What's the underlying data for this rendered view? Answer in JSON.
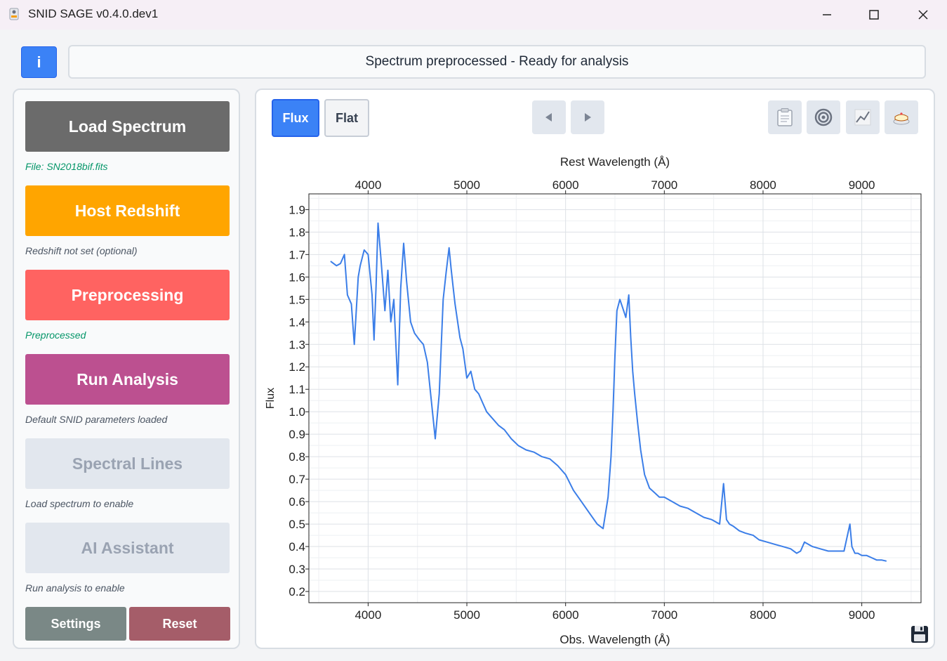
{
  "window": {
    "title": "SNID SAGE v0.4.0.dev1"
  },
  "header": {
    "info_label": "i",
    "status": "Spectrum preprocessed - Ready for analysis"
  },
  "sidebar": {
    "load": {
      "label": "Load Spectrum",
      "note": "File: SN2018bif.fits",
      "color": "#6b6b6b"
    },
    "host": {
      "label": "Host Redshift",
      "note": "Redshift not set (optional)",
      "color": "#ffa500"
    },
    "pre": {
      "label": "Preprocessing",
      "note": "Preprocessed",
      "color": "#ff6361"
    },
    "run": {
      "label": "Run Analysis",
      "note": "Default SNID parameters loaded",
      "color": "#bc5090"
    },
    "lines": {
      "label": "Spectral Lines",
      "note": "Load spectrum to enable",
      "disabled": true
    },
    "ai": {
      "label": "AI Assistant",
      "note": "Run analysis to enable",
      "disabled": true
    },
    "settings_label": "Settings",
    "reset_label": "Reset"
  },
  "toolbar": {
    "flux_label": "Flux",
    "flat_label": "Flat",
    "prev_icon": "triangle-left-icon",
    "next_icon": "triangle-right-icon",
    "tools": [
      "clipboard-icon",
      "target-icon",
      "line-chart-icon",
      "cake-icon"
    ],
    "active_view": "Flux"
  },
  "chart_data": {
    "type": "line",
    "title": "",
    "xlabel": "Obs. Wavelength (Å)",
    "x2label": "Rest Wavelength (Å)",
    "ylabel": "Flux",
    "xlim": [
      3400,
      9600
    ],
    "ylim": [
      0.15,
      1.97
    ],
    "xticks": [
      4000,
      5000,
      6000,
      7000,
      8000,
      9000
    ],
    "x2ticks": [
      4000,
      5000,
      6000,
      7000,
      8000,
      9000
    ],
    "yticks": [
      0.2,
      0.3,
      0.4,
      0.5,
      0.6,
      0.7,
      0.8,
      0.9,
      1.0,
      1.1,
      1.2,
      1.3,
      1.4,
      1.5,
      1.6,
      1.7,
      1.8,
      1.9
    ],
    "grid": true,
    "series": [
      {
        "color": "#3b7ee8",
        "x": [
          3620,
          3680,
          3720,
          3760,
          3790,
          3830,
          3860,
          3900,
          3920,
          3960,
          4000,
          4040,
          4060,
          4080,
          4100,
          4130,
          4170,
          4200,
          4230,
          4260,
          4300,
          4330,
          4360,
          4390,
          4430,
          4470,
          4520,
          4560,
          4600,
          4640,
          4680,
          4720,
          4760,
          4790,
          4820,
          4840,
          4860,
          4880,
          4900,
          4930,
          4960,
          5000,
          5040,
          5080,
          5120,
          5160,
          5200,
          5260,
          5320,
          5380,
          5450,
          5520,
          5600,
          5680,
          5760,
          5840,
          5920,
          6000,
          6080,
          6160,
          6240,
          6320,
          6380,
          6430,
          6460,
          6480,
          6500,
          6520,
          6550,
          6580,
          6610,
          6640,
          6660,
          6680,
          6700,
          6730,
          6760,
          6800,
          6850,
          6900,
          6950,
          7000,
          7080,
          7160,
          7240,
          7320,
          7400,
          7480,
          7560,
          7600,
          7630,
          7660,
          7700,
          7760,
          7820,
          7900,
          7960,
          8040,
          8120,
          8200,
          8280,
          8340,
          8380,
          8420,
          8500,
          8580,
          8660,
          8740,
          8820,
          8880,
          8900,
          8930,
          8960,
          9000,
          9050,
          9100,
          9150,
          9200,
          9250
        ],
        "y": [
          1.67,
          1.65,
          1.66,
          1.7,
          1.52,
          1.48,
          1.3,
          1.6,
          1.65,
          1.72,
          1.7,
          1.52,
          1.32,
          1.55,
          1.84,
          1.68,
          1.45,
          1.63,
          1.4,
          1.5,
          1.12,
          1.55,
          1.75,
          1.58,
          1.4,
          1.35,
          1.32,
          1.3,
          1.22,
          1.05,
          0.88,
          1.08,
          1.5,
          1.62,
          1.73,
          1.64,
          1.56,
          1.48,
          1.42,
          1.33,
          1.28,
          1.15,
          1.18,
          1.1,
          1.08,
          1.04,
          1.0,
          0.97,
          0.94,
          0.92,
          0.88,
          0.85,
          0.83,
          0.82,
          0.8,
          0.79,
          0.76,
          0.72,
          0.65,
          0.6,
          0.55,
          0.5,
          0.48,
          0.62,
          0.8,
          1.0,
          1.25,
          1.45,
          1.5,
          1.46,
          1.42,
          1.52,
          1.33,
          1.18,
          1.08,
          0.95,
          0.83,
          0.72,
          0.66,
          0.64,
          0.62,
          0.62,
          0.6,
          0.58,
          0.57,
          0.55,
          0.53,
          0.52,
          0.5,
          0.68,
          0.52,
          0.5,
          0.49,
          0.47,
          0.46,
          0.45,
          0.43,
          0.42,
          0.41,
          0.4,
          0.39,
          0.37,
          0.38,
          0.42,
          0.4,
          0.39,
          0.38,
          0.38,
          0.38,
          0.5,
          0.4,
          0.37,
          0.37,
          0.36,
          0.36,
          0.35,
          0.34,
          0.34,
          0.335
        ]
      }
    ]
  }
}
